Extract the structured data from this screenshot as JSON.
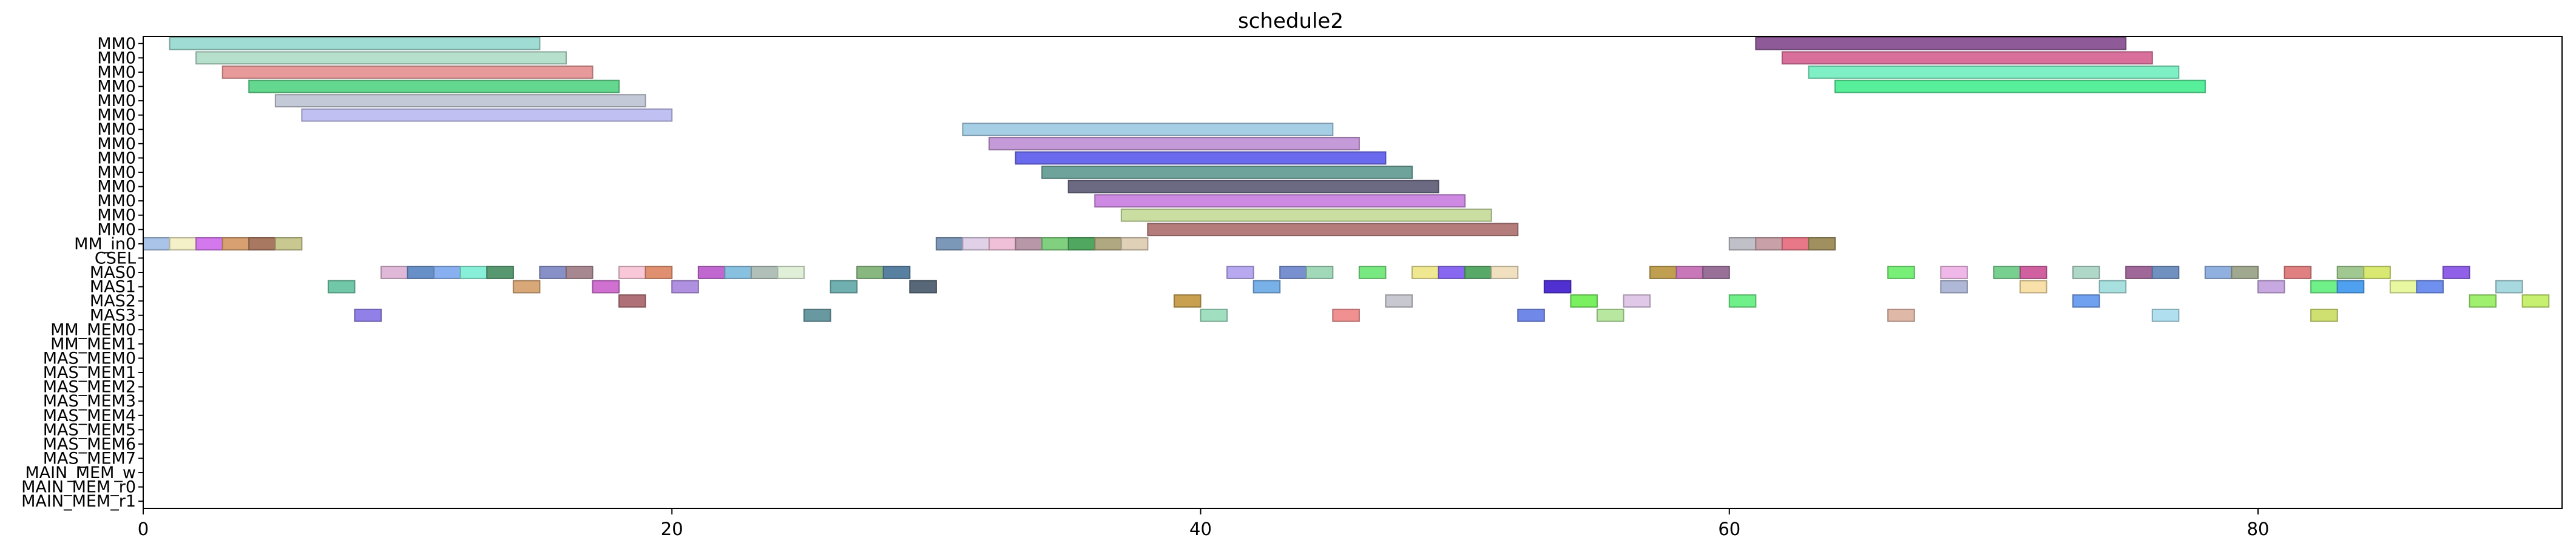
{
  "chart_data": {
    "type": "gantt",
    "title": "schedule2",
    "xlabel": "",
    "ylabel": "",
    "xlim": [
      0,
      91.5
    ],
    "xticks": [
      0,
      20,
      40,
      60,
      80
    ],
    "grid": false,
    "legend": "none",
    "rows": [
      "MM0",
      "MM0",
      "MM0",
      "MM0",
      "MM0",
      "MM0",
      "MM0",
      "MM0",
      "MM0",
      "MM0",
      "MM0",
      "MM0",
      "MM0",
      "MM0",
      "MM_in0",
      "CSEL",
      "MAS0",
      "MAS1",
      "MAS2",
      "MAS3",
      "MM_MEM0",
      "MM_MEM1",
      "MAS_MEM0",
      "MAS_MEM1",
      "MAS_MEM2",
      "MAS_MEM3",
      "MAS_MEM4",
      "MAS_MEM5",
      "MAS_MEM6",
      "MAS_MEM7",
      "MAIN_MEM_w",
      "MAIN_MEM_r0",
      "MAIN_MEM_r1"
    ],
    "tasks": [
      {
        "row": 0,
        "start": 1,
        "end": 15,
        "color": "#9fdcd3"
      },
      {
        "row": 1,
        "start": 2,
        "end": 16,
        "color": "#b6dfcc"
      },
      {
        "row": 2,
        "start": 3,
        "end": 17,
        "color": "#e89a9a"
      },
      {
        "row": 3,
        "start": 4,
        "end": 18,
        "color": "#63d88e"
      },
      {
        "row": 4,
        "start": 5,
        "end": 19,
        "color": "#c3c9d6"
      },
      {
        "row": 5,
        "start": 6,
        "end": 20,
        "color": "#c1c0f2"
      },
      {
        "row": 0,
        "start": 61,
        "end": 75,
        "color": "#8e5a98"
      },
      {
        "row": 1,
        "start": 62,
        "end": 76,
        "color": "#d9709c"
      },
      {
        "row": 2,
        "start": 63,
        "end": 77,
        "color": "#7ff0c5"
      },
      {
        "row": 3,
        "start": 64,
        "end": 78,
        "color": "#58ef9b"
      },
      {
        "row": 6,
        "start": 31,
        "end": 45,
        "color": "#a6cfe6"
      },
      {
        "row": 7,
        "start": 32,
        "end": 46,
        "color": "#c59ad8"
      },
      {
        "row": 8,
        "start": 33,
        "end": 47,
        "color": "#6a6aef"
      },
      {
        "row": 9,
        "start": 34,
        "end": 48,
        "color": "#6ea39c"
      },
      {
        "row": 10,
        "start": 35,
        "end": 49,
        "color": "#6b6a82"
      },
      {
        "row": 11,
        "start": 36,
        "end": 50,
        "color": "#ce8ae3"
      },
      {
        "row": 12,
        "start": 37,
        "end": 51,
        "color": "#c9dea0"
      },
      {
        "row": 13,
        "start": 38,
        "end": 52,
        "color": "#b57c7c"
      },
      {
        "row": 14,
        "start": 0,
        "end": 1,
        "color": "#a9c4e8"
      },
      {
        "row": 14,
        "start": 1,
        "end": 2,
        "color": "#f4f0c8"
      },
      {
        "row": 14,
        "start": 2,
        "end": 3,
        "color": "#d478ee"
      },
      {
        "row": 14,
        "start": 3,
        "end": 4,
        "color": "#d8a070"
      },
      {
        "row": 14,
        "start": 4,
        "end": 5,
        "color": "#a87860"
      },
      {
        "row": 14,
        "start": 5,
        "end": 6,
        "color": "#c8c890"
      },
      {
        "row": 14,
        "start": 30,
        "end": 31,
        "color": "#7c98b8"
      },
      {
        "row": 14,
        "start": 31,
        "end": 32,
        "color": "#e0d0e8"
      },
      {
        "row": 14,
        "start": 32,
        "end": 33,
        "color": "#f0c0d8"
      },
      {
        "row": 14,
        "start": 33,
        "end": 34,
        "color": "#b898a8"
      },
      {
        "row": 14,
        "start": 34,
        "end": 35,
        "color": "#80d080"
      },
      {
        "row": 14,
        "start": 35,
        "end": 36,
        "color": "#50a860"
      },
      {
        "row": 14,
        "start": 36,
        "end": 37,
        "color": "#b0a880"
      },
      {
        "row": 14,
        "start": 37,
        "end": 38,
        "color": "#e0d0b8"
      },
      {
        "row": 14,
        "start": 60,
        "end": 61,
        "color": "#c0c0c8"
      },
      {
        "row": 14,
        "start": 61,
        "end": 62,
        "color": "#c8a0a8"
      },
      {
        "row": 14,
        "start": 62,
        "end": 63,
        "color": "#e87888"
      },
      {
        "row": 14,
        "start": 63,
        "end": 64,
        "color": "#a09060"
      },
      {
        "row": 16,
        "start": 9,
        "end": 10,
        "color": "#e0b8d8"
      },
      {
        "row": 16,
        "start": 10,
        "end": 11,
        "color": "#6890c8"
      },
      {
        "row": 16,
        "start": 11,
        "end": 12,
        "color": "#88b0f0"
      },
      {
        "row": 16,
        "start": 12,
        "end": 13,
        "color": "#88f0d8"
      },
      {
        "row": 16,
        "start": 13,
        "end": 14,
        "color": "#589870"
      },
      {
        "row": 16,
        "start": 15,
        "end": 16,
        "color": "#8890c8"
      },
      {
        "row": 16,
        "start": 16,
        "end": 17,
        "color": "#a88890"
      },
      {
        "row": 16,
        "start": 18,
        "end": 19,
        "color": "#f8c8d8"
      },
      {
        "row": 16,
        "start": 19,
        "end": 20,
        "color": "#e09070"
      },
      {
        "row": 16,
        "start": 21,
        "end": 22,
        "color": "#c068d0"
      },
      {
        "row": 16,
        "start": 22,
        "end": 23,
        "color": "#88c0e0"
      },
      {
        "row": 16,
        "start": 23,
        "end": 24,
        "color": "#b0c0b8"
      },
      {
        "row": 16,
        "start": 24,
        "end": 25,
        "color": "#e0f0d8"
      },
      {
        "row": 16,
        "start": 27,
        "end": 28,
        "color": "#88b880"
      },
      {
        "row": 16,
        "start": 28,
        "end": 29,
        "color": "#5880a0"
      },
      {
        "row": 16,
        "start": 41,
        "end": 42,
        "color": "#b8a8f0"
      },
      {
        "row": 16,
        "start": 43,
        "end": 44,
        "color": "#7890d0"
      },
      {
        "row": 16,
        "start": 44,
        "end": 45,
        "color": "#a0d8b8"
      },
      {
        "row": 16,
        "start": 46,
        "end": 47,
        "color": "#78e880"
      },
      {
        "row": 16,
        "start": 48,
        "end": 49,
        "color": "#f0e890"
      },
      {
        "row": 16,
        "start": 49,
        "end": 50,
        "color": "#8868f0"
      },
      {
        "row": 16,
        "start": 50,
        "end": 51,
        "color": "#58a868"
      },
      {
        "row": 16,
        "start": 51,
        "end": 52,
        "color": "#f0e0c0"
      },
      {
        "row": 16,
        "start": 57,
        "end": 58,
        "color": "#c0a050"
      },
      {
        "row": 16,
        "start": 58,
        "end": 59,
        "color": "#c878b8"
      },
      {
        "row": 16,
        "start": 59,
        "end": 60,
        "color": "#987098"
      },
      {
        "row": 16,
        "start": 66,
        "end": 67,
        "color": "#78f078"
      },
      {
        "row": 16,
        "start": 68,
        "end": 69,
        "color": "#f0b8e8"
      },
      {
        "row": 16,
        "start": 70,
        "end": 71,
        "color": "#78d090"
      },
      {
        "row": 16,
        "start": 71,
        "end": 72,
        "color": "#d060a0"
      },
      {
        "row": 16,
        "start": 73,
        "end": 74,
        "color": "#b0d8c8"
      },
      {
        "row": 16,
        "start": 75,
        "end": 76,
        "color": "#a06898"
      },
      {
        "row": 16,
        "start": 76,
        "end": 77,
        "color": "#7090c0"
      },
      {
        "row": 16,
        "start": 78,
        "end": 79,
        "color": "#90b0e0"
      },
      {
        "row": 16,
        "start": 79,
        "end": 80,
        "color": "#a0a890"
      },
      {
        "row": 16,
        "start": 81,
        "end": 82,
        "color": "#e08080"
      },
      {
        "row": 16,
        "start": 83,
        "end": 84,
        "color": "#a0c890"
      },
      {
        "row": 16,
        "start": 84,
        "end": 85,
        "color": "#d8e870"
      },
      {
        "row": 16,
        "start": 87,
        "end": 88,
        "color": "#9060e8"
      },
      {
        "row": 17,
        "start": 7,
        "end": 8,
        "color": "#70c8a8"
      },
      {
        "row": 17,
        "start": 14,
        "end": 15,
        "color": "#d8a878"
      },
      {
        "row": 17,
        "start": 17,
        "end": 18,
        "color": "#d070d0"
      },
      {
        "row": 17,
        "start": 20,
        "end": 21,
        "color": "#b090e0"
      },
      {
        "row": 17,
        "start": 26,
        "end": 27,
        "color": "#70b0b0"
      },
      {
        "row": 17,
        "start": 29,
        "end": 30,
        "color": "#586878"
      },
      {
        "row": 17,
        "start": 42,
        "end": 43,
        "color": "#78b0e8"
      },
      {
        "row": 17,
        "start": 53,
        "end": 54,
        "color": "#5030d0"
      },
      {
        "row": 17,
        "start": 68,
        "end": 69,
        "color": "#b0b8d8"
      },
      {
        "row": 17,
        "start": 71,
        "end": 72,
        "color": "#f8e0a8"
      },
      {
        "row": 17,
        "start": 74,
        "end": 75,
        "color": "#a8e0e0"
      },
      {
        "row": 17,
        "start": 80,
        "end": 81,
        "color": "#c8a8e0"
      },
      {
        "row": 17,
        "start": 82,
        "end": 83,
        "color": "#70f088"
      },
      {
        "row": 17,
        "start": 83,
        "end": 84,
        "color": "#50a0f0"
      },
      {
        "row": 17,
        "start": 85,
        "end": 86,
        "color": "#e8f8a0"
      },
      {
        "row": 17,
        "start": 86,
        "end": 87,
        "color": "#7090f0"
      },
      {
        "row": 17,
        "start": 89,
        "end": 90,
        "color": "#a8d8e0"
      },
      {
        "row": 18,
        "start": 18,
        "end": 19,
        "color": "#b07078"
      },
      {
        "row": 18,
        "start": 39,
        "end": 40,
        "color": "#c8a050"
      },
      {
        "row": 18,
        "start": 47,
        "end": 48,
        "color": "#c8c8d0"
      },
      {
        "row": 18,
        "start": 54,
        "end": 55,
        "color": "#78f060"
      },
      {
        "row": 18,
        "start": 56,
        "end": 57,
        "color": "#e0c8e8"
      },
      {
        "row": 18,
        "start": 60,
        "end": 61,
        "color": "#70f088"
      },
      {
        "row": 18,
        "start": 73,
        "end": 74,
        "color": "#70a0f0"
      },
      {
        "row": 18,
        "start": 88,
        "end": 89,
        "color": "#a0f070"
      },
      {
        "row": 18,
        "start": 90,
        "end": 91,
        "color": "#c8f070"
      },
      {
        "row": 19,
        "start": 8,
        "end": 9,
        "color": "#9080e8"
      },
      {
        "row": 19,
        "start": 25,
        "end": 26,
        "color": "#6898a0"
      },
      {
        "row": 19,
        "start": 40,
        "end": 41,
        "color": "#a0e0c0"
      },
      {
        "row": 19,
        "start": 45,
        "end": 46,
        "color": "#f09090"
      },
      {
        "row": 19,
        "start": 52,
        "end": 53,
        "color": "#7088e8"
      },
      {
        "row": 19,
        "start": 55,
        "end": 56,
        "color": "#b8e8a0"
      },
      {
        "row": 19,
        "start": 66,
        "end": 67,
        "color": "#e0b8a8"
      },
      {
        "row": 19,
        "start": 76,
        "end": 77,
        "color": "#b0e0f0"
      },
      {
        "row": 19,
        "start": 82,
        "end": 83,
        "color": "#d0e070"
      }
    ]
  }
}
